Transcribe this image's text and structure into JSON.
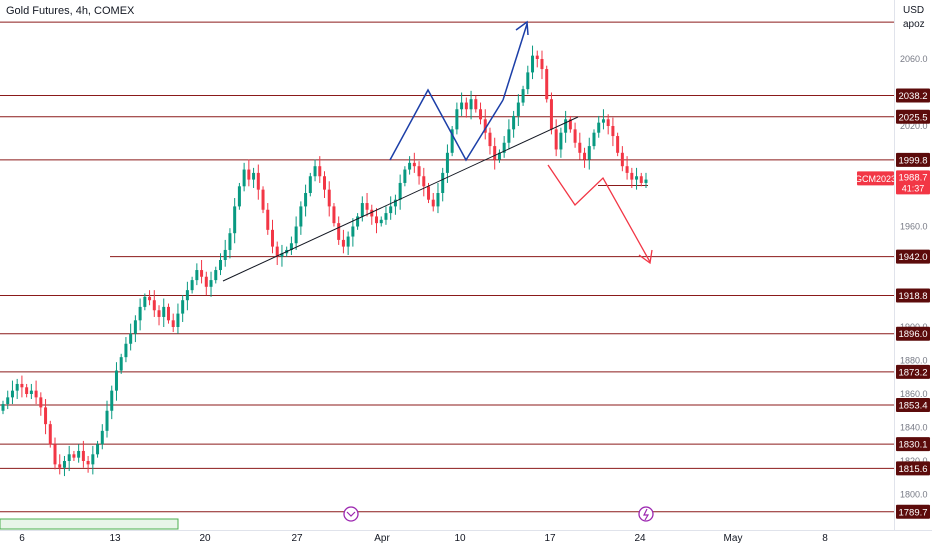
{
  "header": {
    "title": "Gold Futures, 4h, COMEX",
    "currency": "USD",
    "currency_sub": "apoz"
  },
  "colors": {
    "up": "#089981",
    "down": "#f23645",
    "level": "#8b1a1a",
    "trend": "#131722",
    "pattern": "#1c3fa8",
    "projection": "#f23645",
    "label_bg": "#5c0b0b",
    "price_bg": "#f23645"
  },
  "chart_data": {
    "type": "candlestick",
    "title": "Gold Futures, 4h, COMEX",
    "symbol": "GCM2023",
    "current_price": "1988.7",
    "countdown": "41:37",
    "y_unit": "USD",
    "ylim": [
      1785,
      2095
    ],
    "y_ticks": [
      {
        "value": 2060,
        "label": "2060.0"
      },
      {
        "value": 2020,
        "label": "2020.0"
      },
      {
        "value": 1960,
        "label": "1960.0"
      },
      {
        "value": 1900,
        "label": "1900.0"
      },
      {
        "value": 1880,
        "label": "1880.0"
      },
      {
        "value": 1860,
        "label": "1860.0"
      },
      {
        "value": 1840,
        "label": "1840.0"
      },
      {
        "value": 1820,
        "label": "1820.0"
      },
      {
        "value": 1800,
        "label": "1800.0"
      }
    ],
    "x_ticks": [
      "6",
      "13",
      "20",
      "27",
      "Apr",
      "10",
      "17",
      "24",
      "May",
      "8"
    ],
    "horizontal_levels": [
      {
        "value": 2082.0,
        "label": ""
      },
      {
        "value": 2038.2,
        "label": "2038.2"
      },
      {
        "value": 2025.5,
        "label": "2025.5"
      },
      {
        "value": 1999.8,
        "label": "1999.8"
      },
      {
        "value": 1984.5,
        "label": "1984.5"
      },
      {
        "value": 1942.0,
        "label": "1942.0"
      },
      {
        "value": 1918.8,
        "label": "1918.8"
      },
      {
        "value": 1896.0,
        "label": "1896.0"
      },
      {
        "value": 1873.2,
        "label": "1873.2"
      },
      {
        "value": 1853.4,
        "label": "1853.4"
      },
      {
        "value": 1830.1,
        "label": "1830.1"
      },
      {
        "value": 1815.6,
        "label": "1815.6"
      },
      {
        "value": 1789.7,
        "label": "1789.7"
      }
    ],
    "close_series": [
      1854,
      1858,
      1862,
      1866,
      1864,
      1860,
      1862,
      1858,
      1852,
      1842,
      1830,
      1818,
      1816,
      1820,
      1824,
      1822,
      1826,
      1820,
      1818,
      1824,
      1830,
      1838,
      1850,
      1862,
      1874,
      1882,
      1890,
      1896,
      1904,
      1912,
      1918,
      1916,
      1910,
      1906,
      1912,
      1904,
      1900,
      1908,
      1916,
      1922,
      1928,
      1934,
      1930,
      1924,
      1928,
      1934,
      1940,
      1946,
      1956,
      1972,
      1984,
      1994,
      1988,
      1992,
      1982,
      1970,
      1958,
      1948,
      1942,
      1944,
      1946,
      1950,
      1960,
      1972,
      1980,
      1990,
      1996,
      1990,
      1982,
      1972,
      1962,
      1952,
      1948,
      1954,
      1960,
      1966,
      1974,
      1970,
      1966,
      1962,
      1964,
      1968,
      1972,
      1976,
      1986,
      1994,
      1998,
      1996,
      1990,
      1984,
      1976,
      1972,
      1980,
      1992,
      2004,
      2018,
      2030,
      2034,
      2030,
      2036,
      2030,
      2024,
      2016,
      2008,
      2000,
      2004,
      2010,
      2018,
      2026,
      2034,
      2042,
      2052,
      2062,
      2060,
      2054,
      2036,
      2018,
      2006,
      2016,
      2024,
      2018,
      2010,
      2004,
      2000,
      2008,
      2016,
      2022,
      2024,
      2020,
      2014,
      2004,
      1996,
      1992,
      1988,
      1990,
      1986,
      1988
    ],
    "annotations": [
      {
        "type": "trendline",
        "from": [
          "2023-03-24",
          1933
        ],
        "to": [
          "2023-04-18",
          2023
        ]
      },
      {
        "type": "pattern",
        "shape": "double-top",
        "color": "blue"
      },
      {
        "type": "projection",
        "target": 1942.0,
        "color": "red"
      }
    ]
  }
}
